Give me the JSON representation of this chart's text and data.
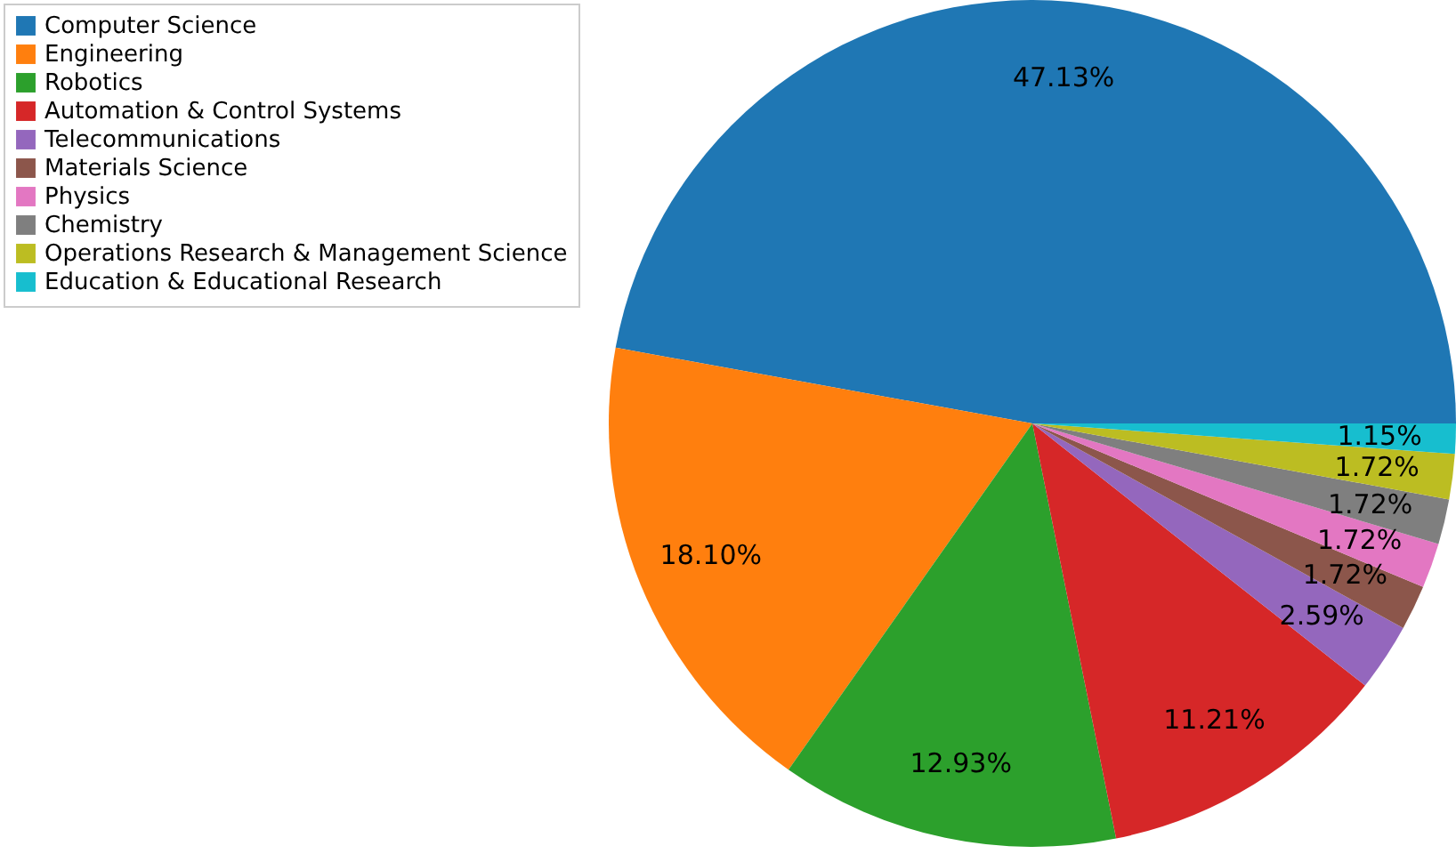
{
  "chart_data": {
    "type": "pie",
    "categories": [
      "Computer Science",
      "Engineering",
      "Robotics",
      "Automation & Control Systems",
      "Telecommunications",
      "Materials Science",
      "Physics",
      "Chemistry",
      "Operations Research & Management Science",
      "Education & Educational Research"
    ],
    "values": [
      47.13,
      18.1,
      12.93,
      11.21,
      2.59,
      1.72,
      1.72,
      1.72,
      1.72,
      1.15
    ],
    "value_labels": [
      "47.13%",
      "18.10%",
      "12.93%",
      "11.21%",
      "2.59%",
      "1.72%",
      "1.72%",
      "1.72%",
      "1.72%",
      "1.15%"
    ],
    "colors": [
      "#1f77b4",
      "#ff7f0e",
      "#2ca02c",
      "#d62728",
      "#9467bd",
      "#8c564b",
      "#e377c2",
      "#7f7f7f",
      "#bcbd22",
      "#17becf"
    ],
    "legend": "top left"
  }
}
